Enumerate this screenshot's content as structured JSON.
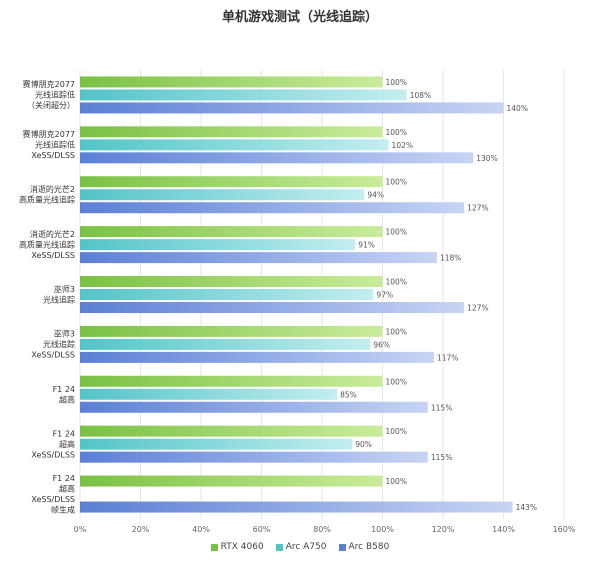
{
  "chart_data": {
    "type": "bar",
    "orientation": "horizontal",
    "title": "单机游戏测试（光线追踪）",
    "categories": [
      [
        "赛博朋克2077",
        "光线追踪低",
        "（关闭超分）"
      ],
      [
        "赛博朋克2077",
        "光线追踪低",
        "XeSS/DLSS"
      ],
      [
        "消逝的光芒2",
        "高质量光线追踪"
      ],
      [
        "消逝的光芒2",
        "高质量光线追踪",
        "XeSS/DLSS"
      ],
      [
        "巫师3",
        "光线追踪"
      ],
      [
        "巫师3",
        "光线追踪",
        "XeSS/DLSS"
      ],
      [
        "F1 24",
        "超高"
      ],
      [
        "F1 24",
        "超高",
        "XeSS/DLSS"
      ],
      [
        "F1 24",
        "超高",
        "XeSS/DLSS",
        "帧生成"
      ]
    ],
    "series": [
      {
        "name": "RTX 4060",
        "color": "#7ac143",
        "values": [
          100,
          100,
          100,
          100,
          100,
          100,
          100,
          100,
          100
        ]
      },
      {
        "name": "Arc A750",
        "color": "#52c4c8",
        "values": [
          108,
          102,
          94,
          91,
          97,
          96,
          85,
          90,
          null
        ]
      },
      {
        "name": "Arc B580",
        "color": "#5b7fd6",
        "values": [
          140,
          130,
          127,
          118,
          127,
          117,
          115,
          115,
          143
        ]
      }
    ],
    "value_suffix": "%",
    "xlim": [
      0,
      160
    ],
    "xticks": [
      "0%",
      "20%",
      "40%",
      "60%",
      "80%",
      "100%",
      "120%",
      "140%",
      "160%"
    ],
    "grid": "vertical",
    "legend_position": "bottom"
  }
}
